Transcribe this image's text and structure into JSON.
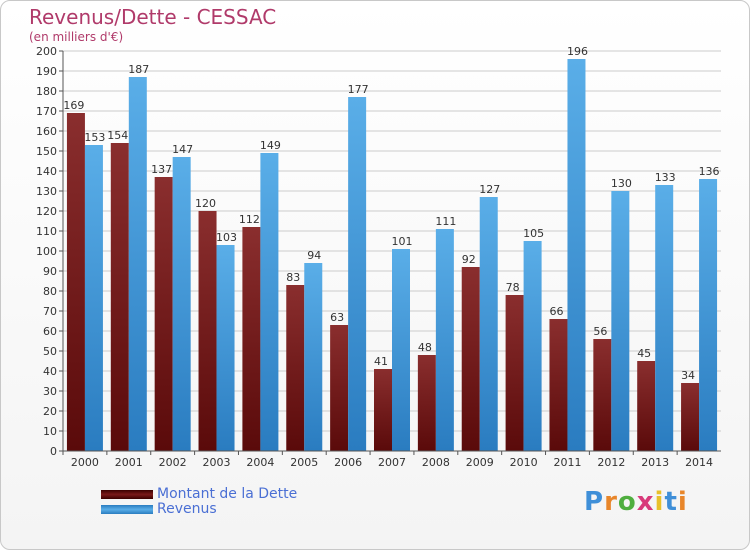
{
  "title": "Revenus/Dette - CESSAC",
  "subtitle": "(en milliers d'€)",
  "logo": {
    "letters": [
      "P",
      "r",
      "o",
      "x",
      "i",
      "t",
      "i"
    ],
    "colors": [
      "#3f8fd8",
      "#e8862a",
      "#4fae3f",
      "#d83a7a",
      "#e8c02a",
      "#3f8fd8",
      "#e8862a"
    ]
  },
  "colors": {
    "dette_dark": "#5a0a0a",
    "dette_light": "#8a2e2e",
    "revenus_dark": "#2a7cc0",
    "revenus_light": "#5aaee8",
    "grid": "#cccccc",
    "axis": "#555555",
    "title": "#b03a6a",
    "legend_text": "#4a6fd4"
  },
  "chart_data": {
    "type": "bar",
    "title": "Revenus/Dette - CESSAC",
    "subtitle": "(en milliers d'€)",
    "categories": [
      "2000",
      "2001",
      "2002",
      "2003",
      "2004",
      "2005",
      "2006",
      "2007",
      "2008",
      "2009",
      "2010",
      "2011",
      "2012",
      "2013",
      "2014"
    ],
    "series": [
      {
        "name": "Montant de la Dette",
        "values": [
          169,
          154,
          137,
          120,
          112,
          83,
          63,
          41,
          48,
          92,
          78,
          66,
          56,
          45,
          34
        ]
      },
      {
        "name": "Revenus",
        "values": [
          153,
          187,
          147,
          103,
          149,
          94,
          177,
          101,
          111,
          127,
          105,
          196,
          130,
          133,
          136
        ]
      }
    ],
    "ylim": [
      0,
      200
    ],
    "yticks": [
      0,
      10,
      20,
      30,
      40,
      50,
      60,
      70,
      80,
      90,
      100,
      110,
      120,
      130,
      140,
      150,
      160,
      170,
      180,
      190,
      200
    ],
    "grid": true,
    "legend": "bottom-left"
  }
}
